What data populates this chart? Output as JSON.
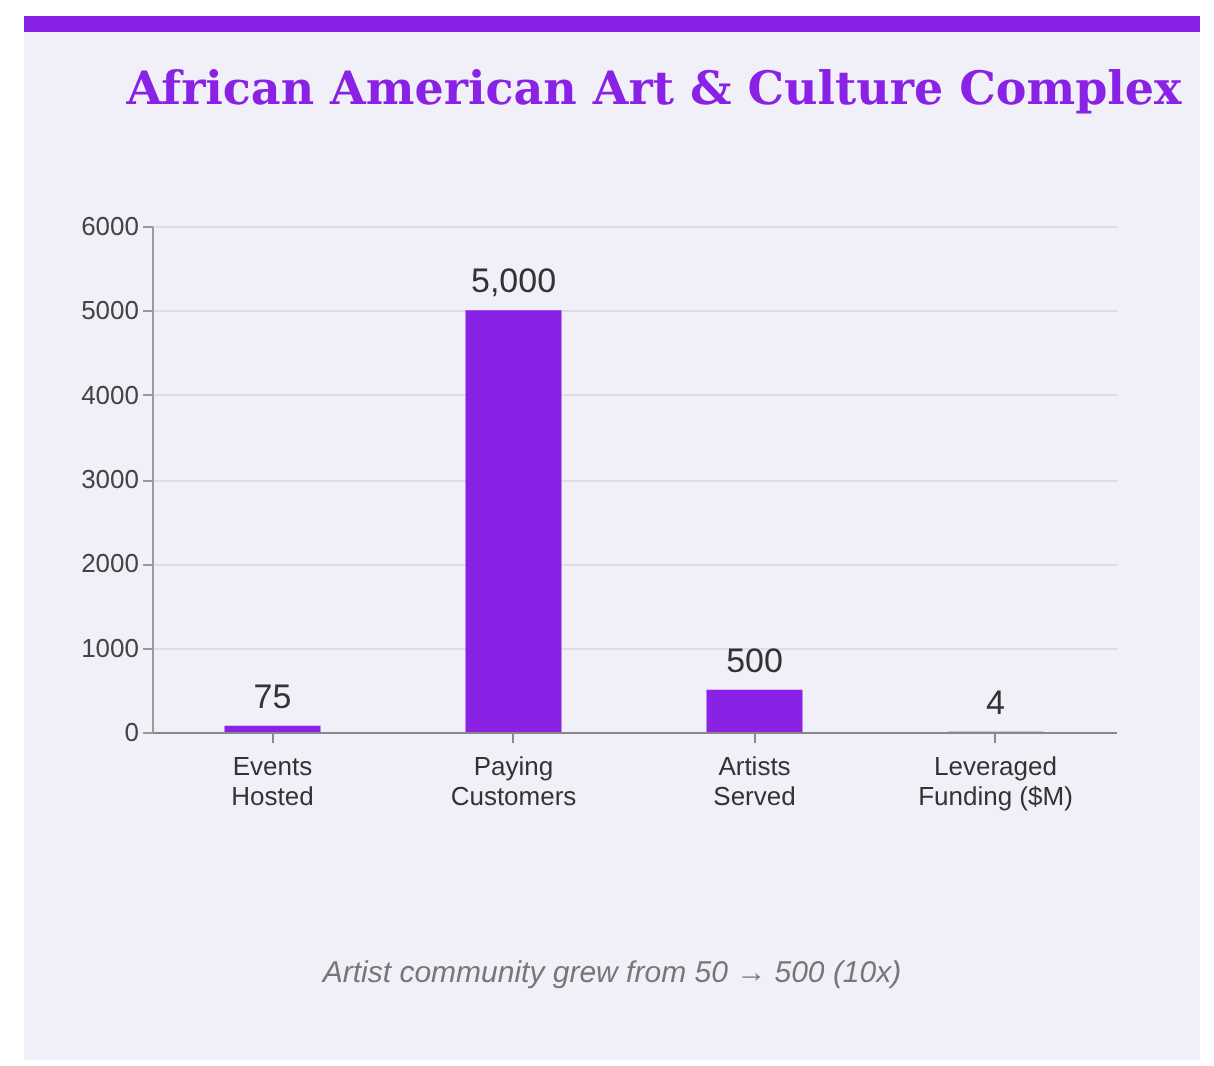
{
  "chart_data": {
    "type": "bar",
    "title": "African American Art & Culture Complex",
    "categories": [
      "Events Hosted",
      "Paying Customers",
      "Artists Served",
      "Leveraged Funding ($M)"
    ],
    "values": [
      75,
      5000,
      500,
      4
    ],
    "value_labels": [
      "75",
      "5,000",
      "500",
      "4"
    ],
    "color": "#8a22e6",
    "ylim": [
      0,
      6000
    ],
    "yticks": [
      0,
      1000,
      2000,
      3000,
      4000,
      5000,
      6000
    ],
    "grid": "y",
    "annotations": [
      "Artist community grew from 50 → 500 (10x)"
    ]
  }
}
